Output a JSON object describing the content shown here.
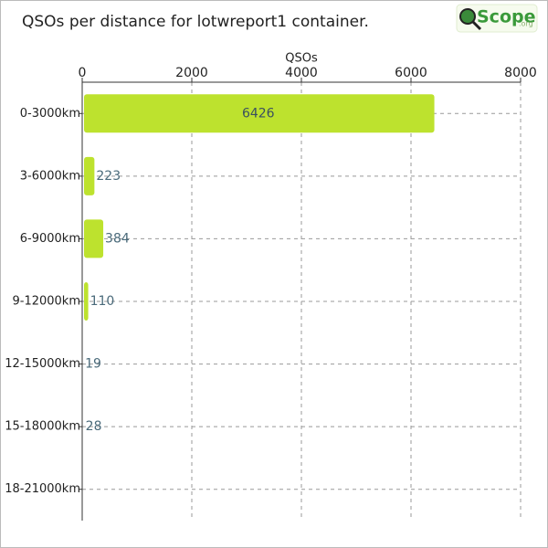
{
  "logo": {
    "text": "Scope",
    "suffix": ".org"
  },
  "chart_data": {
    "type": "barh",
    "title": "QSOs per distance for lotwreport1 container.",
    "x_label": "QSOs",
    "categories": [
      "0-3000km",
      "3-6000km",
      "6-9000km",
      "9-12000km",
      "12-15000km",
      "15-18000km",
      "18-21000km"
    ],
    "values": [
      6426,
      223,
      384,
      110,
      19,
      28,
      0
    ],
    "color": "#bde22e",
    "xlim": [
      0,
      8000
    ],
    "xticks": [
      0,
      2000,
      4000,
      6000,
      8000
    ],
    "grid": true
  }
}
